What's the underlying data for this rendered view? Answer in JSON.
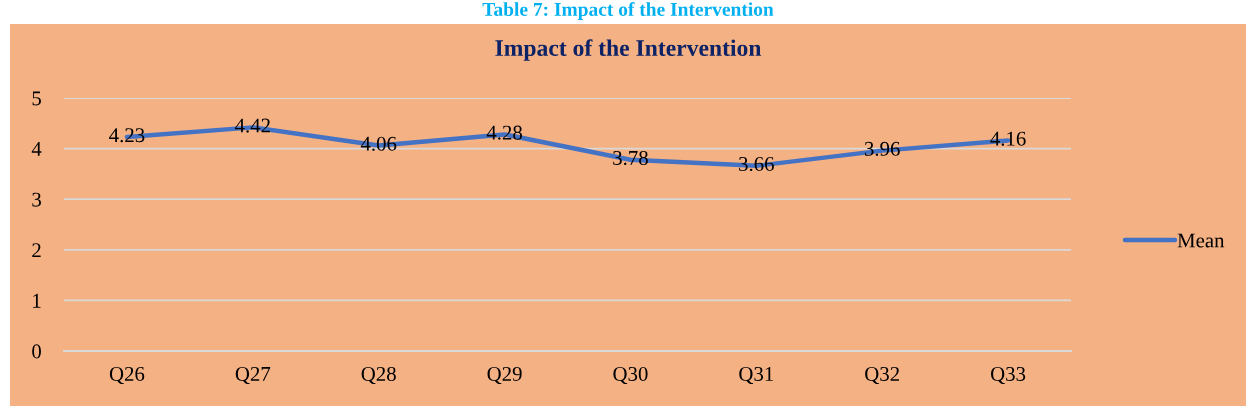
{
  "chart_data": {
    "type": "line",
    "title": "Impact of the Intervention",
    "annotations": [
      "Table 7: Impact of the Intervention"
    ],
    "categories": [
      "Q26",
      "Q27",
      "Q28",
      "Q29",
      "Q30",
      "Q31",
      "Q32",
      "Q33"
    ],
    "series": [
      {
        "name": "Mean",
        "color": "#4472c4",
        "values": [
          4.23,
          4.42,
          4.06,
          4.28,
          3.78,
          3.66,
          3.96,
          4.16
        ]
      }
    ],
    "ylim": [
      0,
      5
    ],
    "yticks": [
      0,
      1,
      2,
      3,
      4,
      5
    ],
    "grid": "y",
    "legend": "right",
    "data_labels": true,
    "marker": "none",
    "line_style": "solid"
  }
}
